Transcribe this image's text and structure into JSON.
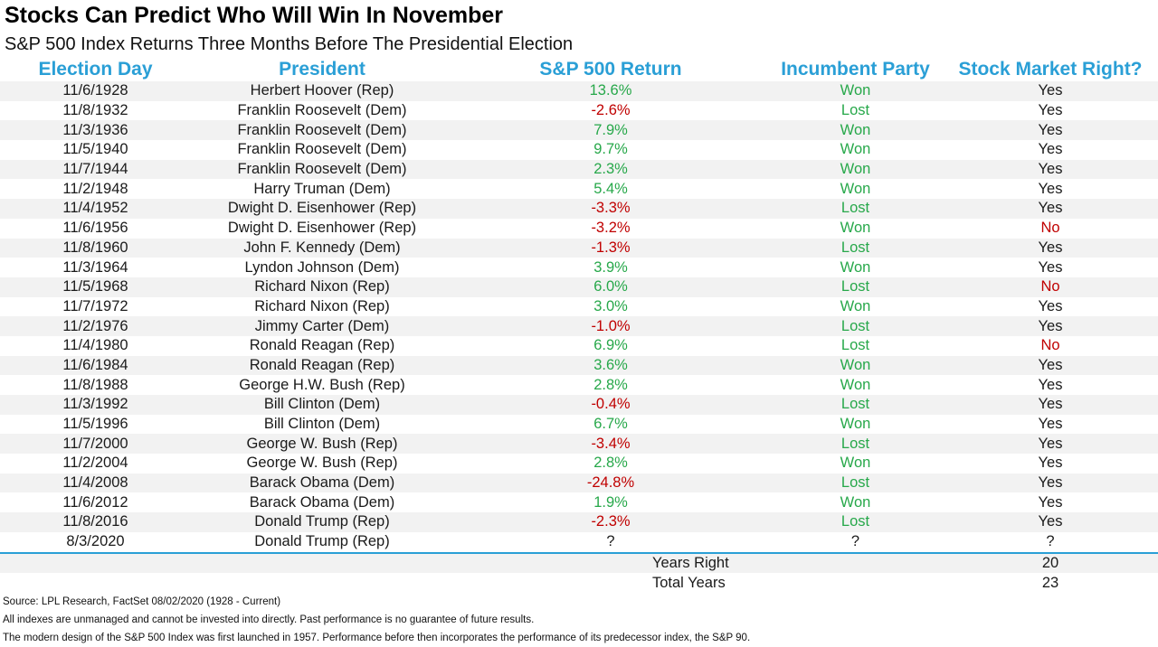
{
  "title": "Stocks Can Predict Who Will Win In November",
  "subtitle": "S&P 500 Index Returns Three Months Before The Presidential Election",
  "headers": [
    "Election Day",
    "President",
    "S&P 500 Return",
    "Incumbent Party",
    "Stock Market Right?"
  ],
  "colors": {
    "header": "#2a9fd6",
    "positive": "#27a84a",
    "negative": "#c00000",
    "band": "#f2f2f2"
  },
  "rows": [
    {
      "date": "11/6/1928",
      "president": "Herbert Hoover (Rep)",
      "ret": "13.6%",
      "ret_sign": "pos",
      "party": "Won",
      "right": "Yes"
    },
    {
      "date": "11/8/1932",
      "president": "Franklin Roosevelt (Dem)",
      "ret": "-2.6%",
      "ret_sign": "neg",
      "party": "Lost",
      "right": "Yes"
    },
    {
      "date": "11/3/1936",
      "president": "Franklin Roosevelt (Dem)",
      "ret": "7.9%",
      "ret_sign": "pos",
      "party": "Won",
      "right": "Yes"
    },
    {
      "date": "11/5/1940",
      "president": "Franklin Roosevelt (Dem)",
      "ret": "9.7%",
      "ret_sign": "pos",
      "party": "Won",
      "right": "Yes"
    },
    {
      "date": "11/7/1944",
      "president": "Franklin Roosevelt (Dem)",
      "ret": "2.3%",
      "ret_sign": "pos",
      "party": "Won",
      "right": "Yes"
    },
    {
      "date": "11/2/1948",
      "president": "Harry Truman (Dem)",
      "ret": "5.4%",
      "ret_sign": "pos",
      "party": "Won",
      "right": "Yes"
    },
    {
      "date": "11/4/1952",
      "president": "Dwight D. Eisenhower (Rep)",
      "ret": "-3.3%",
      "ret_sign": "neg",
      "party": "Lost",
      "right": "Yes"
    },
    {
      "date": "11/6/1956",
      "president": "Dwight D. Eisenhower (Rep)",
      "ret": "-3.2%",
      "ret_sign": "neg",
      "party": "Won",
      "right": "No"
    },
    {
      "date": "11/8/1960",
      "president": "John F. Kennedy (Dem)",
      "ret": "-1.3%",
      "ret_sign": "neg",
      "party": "Lost",
      "right": "Yes"
    },
    {
      "date": "11/3/1964",
      "president": "Lyndon Johnson (Dem)",
      "ret": "3.9%",
      "ret_sign": "pos",
      "party": "Won",
      "right": "Yes"
    },
    {
      "date": "11/5/1968",
      "president": "Richard Nixon (Rep)",
      "ret": "6.0%",
      "ret_sign": "pos",
      "party": "Lost",
      "right": "No"
    },
    {
      "date": "11/7/1972",
      "president": "Richard Nixon (Rep)",
      "ret": "3.0%",
      "ret_sign": "pos",
      "party": "Won",
      "right": "Yes"
    },
    {
      "date": "11/2/1976",
      "president": "Jimmy Carter (Dem)",
      "ret": "-1.0%",
      "ret_sign": "neg",
      "party": "Lost",
      "right": "Yes"
    },
    {
      "date": "11/4/1980",
      "president": "Ronald Reagan (Rep)",
      "ret": "6.9%",
      "ret_sign": "pos",
      "party": "Lost",
      "right": "No"
    },
    {
      "date": "11/6/1984",
      "president": "Ronald Reagan (Rep)",
      "ret": "3.6%",
      "ret_sign": "pos",
      "party": "Won",
      "right": "Yes"
    },
    {
      "date": "11/8/1988",
      "president": "George H.W. Bush (Rep)",
      "ret": "2.8%",
      "ret_sign": "pos",
      "party": "Won",
      "right": "Yes"
    },
    {
      "date": "11/3/1992",
      "president": "Bill Clinton (Dem)",
      "ret": "-0.4%",
      "ret_sign": "neg",
      "party": "Lost",
      "right": "Yes"
    },
    {
      "date": "11/5/1996",
      "president": "Bill Clinton (Dem)",
      "ret": "6.7%",
      "ret_sign": "pos",
      "party": "Won",
      "right": "Yes"
    },
    {
      "date": "11/7/2000",
      "president": "George W. Bush (Rep)",
      "ret": "-3.4%",
      "ret_sign": "neg",
      "party": "Lost",
      "right": "Yes"
    },
    {
      "date": "11/2/2004",
      "president": "George W. Bush (Rep)",
      "ret": "2.8%",
      "ret_sign": "pos",
      "party": "Won",
      "right": "Yes"
    },
    {
      "date": "11/4/2008",
      "president": "Barack Obama (Dem)",
      "ret": "-24.8%",
      "ret_sign": "neg",
      "party": "Lost",
      "right": "Yes"
    },
    {
      "date": "11/6/2012",
      "president": "Barack Obama (Dem)",
      "ret": "1.9%",
      "ret_sign": "pos",
      "party": "Won",
      "right": "Yes"
    },
    {
      "date": "11/8/2016",
      "president": "Donald Trump (Rep)",
      "ret": "-2.3%",
      "ret_sign": "neg",
      "party": "Lost",
      "right": "Yes"
    },
    {
      "date": "8/3/2020",
      "president": "Donald Trump (Rep)",
      "ret": "?",
      "ret_sign": "none",
      "party": "?",
      "right": "?"
    }
  ],
  "summary": [
    {
      "label": "Years Right",
      "value": "20"
    },
    {
      "label": "Total Years",
      "value": "23"
    }
  ],
  "footer": {
    "source": "Source: LPL Research, FactSet 08/02/2020 (1928 - Current)",
    "disclaimer": "All indexes are unmanaged and cannot be invested into directly. Past performance is no guarantee of future results.",
    "note": "The modern design of the S&P 500 Index was first launched in 1957. Performance before then incorporates the performance of its  predecessor index, the S&P 90."
  }
}
